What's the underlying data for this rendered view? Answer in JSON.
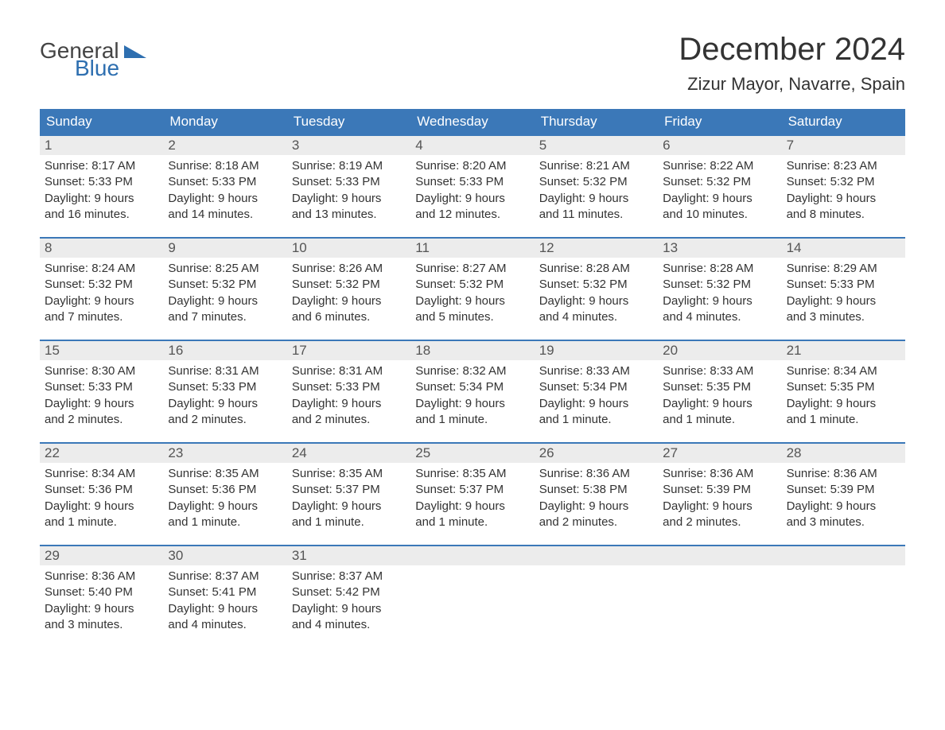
{
  "branding": {
    "name_general": "General",
    "name_blue": "Blue",
    "logo_primary_color": "#2e6fb0",
    "logo_text_color": "#444444"
  },
  "header": {
    "month_title": "December 2024",
    "location": "Zizur Mayor, Navarre, Spain"
  },
  "style": {
    "header_bg": "#3b78b8",
    "header_text": "#ffffff",
    "week_border": "#3b78b8",
    "daynum_bg": "#ececec",
    "body_text": "#333333",
    "page_bg": "#ffffff",
    "font_family": "Arial, Helvetica, sans-serif",
    "title_fontsize_pt": 30,
    "location_fontsize_pt": 17,
    "dayheader_fontsize_pt": 13,
    "cell_fontsize_pt": 11
  },
  "calendar": {
    "type": "table",
    "columns": [
      "Sunday",
      "Monday",
      "Tuesday",
      "Wednesday",
      "Thursday",
      "Friday",
      "Saturday"
    ],
    "weeks": [
      [
        {
          "day": "1",
          "sunrise": "Sunrise: 8:17 AM",
          "sunset": "Sunset: 5:33 PM",
          "daylight1": "Daylight: 9 hours",
          "daylight2": "and 16 minutes."
        },
        {
          "day": "2",
          "sunrise": "Sunrise: 8:18 AM",
          "sunset": "Sunset: 5:33 PM",
          "daylight1": "Daylight: 9 hours",
          "daylight2": "and 14 minutes."
        },
        {
          "day": "3",
          "sunrise": "Sunrise: 8:19 AM",
          "sunset": "Sunset: 5:33 PM",
          "daylight1": "Daylight: 9 hours",
          "daylight2": "and 13 minutes."
        },
        {
          "day": "4",
          "sunrise": "Sunrise: 8:20 AM",
          "sunset": "Sunset: 5:33 PM",
          "daylight1": "Daylight: 9 hours",
          "daylight2": "and 12 minutes."
        },
        {
          "day": "5",
          "sunrise": "Sunrise: 8:21 AM",
          "sunset": "Sunset: 5:32 PM",
          "daylight1": "Daylight: 9 hours",
          "daylight2": "and 11 minutes."
        },
        {
          "day": "6",
          "sunrise": "Sunrise: 8:22 AM",
          "sunset": "Sunset: 5:32 PM",
          "daylight1": "Daylight: 9 hours",
          "daylight2": "and 10 minutes."
        },
        {
          "day": "7",
          "sunrise": "Sunrise: 8:23 AM",
          "sunset": "Sunset: 5:32 PM",
          "daylight1": "Daylight: 9 hours",
          "daylight2": "and 8 minutes."
        }
      ],
      [
        {
          "day": "8",
          "sunrise": "Sunrise: 8:24 AM",
          "sunset": "Sunset: 5:32 PM",
          "daylight1": "Daylight: 9 hours",
          "daylight2": "and 7 minutes."
        },
        {
          "day": "9",
          "sunrise": "Sunrise: 8:25 AM",
          "sunset": "Sunset: 5:32 PM",
          "daylight1": "Daylight: 9 hours",
          "daylight2": "and 7 minutes."
        },
        {
          "day": "10",
          "sunrise": "Sunrise: 8:26 AM",
          "sunset": "Sunset: 5:32 PM",
          "daylight1": "Daylight: 9 hours",
          "daylight2": "and 6 minutes."
        },
        {
          "day": "11",
          "sunrise": "Sunrise: 8:27 AM",
          "sunset": "Sunset: 5:32 PM",
          "daylight1": "Daylight: 9 hours",
          "daylight2": "and 5 minutes."
        },
        {
          "day": "12",
          "sunrise": "Sunrise: 8:28 AM",
          "sunset": "Sunset: 5:32 PM",
          "daylight1": "Daylight: 9 hours",
          "daylight2": "and 4 minutes."
        },
        {
          "day": "13",
          "sunrise": "Sunrise: 8:28 AM",
          "sunset": "Sunset: 5:32 PM",
          "daylight1": "Daylight: 9 hours",
          "daylight2": "and 4 minutes."
        },
        {
          "day": "14",
          "sunrise": "Sunrise: 8:29 AM",
          "sunset": "Sunset: 5:33 PM",
          "daylight1": "Daylight: 9 hours",
          "daylight2": "and 3 minutes."
        }
      ],
      [
        {
          "day": "15",
          "sunrise": "Sunrise: 8:30 AM",
          "sunset": "Sunset: 5:33 PM",
          "daylight1": "Daylight: 9 hours",
          "daylight2": "and 2 minutes."
        },
        {
          "day": "16",
          "sunrise": "Sunrise: 8:31 AM",
          "sunset": "Sunset: 5:33 PM",
          "daylight1": "Daylight: 9 hours",
          "daylight2": "and 2 minutes."
        },
        {
          "day": "17",
          "sunrise": "Sunrise: 8:31 AM",
          "sunset": "Sunset: 5:33 PM",
          "daylight1": "Daylight: 9 hours",
          "daylight2": "and 2 minutes."
        },
        {
          "day": "18",
          "sunrise": "Sunrise: 8:32 AM",
          "sunset": "Sunset: 5:34 PM",
          "daylight1": "Daylight: 9 hours",
          "daylight2": "and 1 minute."
        },
        {
          "day": "19",
          "sunrise": "Sunrise: 8:33 AM",
          "sunset": "Sunset: 5:34 PM",
          "daylight1": "Daylight: 9 hours",
          "daylight2": "and 1 minute."
        },
        {
          "day": "20",
          "sunrise": "Sunrise: 8:33 AM",
          "sunset": "Sunset: 5:35 PM",
          "daylight1": "Daylight: 9 hours",
          "daylight2": "and 1 minute."
        },
        {
          "day": "21",
          "sunrise": "Sunrise: 8:34 AM",
          "sunset": "Sunset: 5:35 PM",
          "daylight1": "Daylight: 9 hours",
          "daylight2": "and 1 minute."
        }
      ],
      [
        {
          "day": "22",
          "sunrise": "Sunrise: 8:34 AM",
          "sunset": "Sunset: 5:36 PM",
          "daylight1": "Daylight: 9 hours",
          "daylight2": "and 1 minute."
        },
        {
          "day": "23",
          "sunrise": "Sunrise: 8:35 AM",
          "sunset": "Sunset: 5:36 PM",
          "daylight1": "Daylight: 9 hours",
          "daylight2": "and 1 minute."
        },
        {
          "day": "24",
          "sunrise": "Sunrise: 8:35 AM",
          "sunset": "Sunset: 5:37 PM",
          "daylight1": "Daylight: 9 hours",
          "daylight2": "and 1 minute."
        },
        {
          "day": "25",
          "sunrise": "Sunrise: 8:35 AM",
          "sunset": "Sunset: 5:37 PM",
          "daylight1": "Daylight: 9 hours",
          "daylight2": "and 1 minute."
        },
        {
          "day": "26",
          "sunrise": "Sunrise: 8:36 AM",
          "sunset": "Sunset: 5:38 PM",
          "daylight1": "Daylight: 9 hours",
          "daylight2": "and 2 minutes."
        },
        {
          "day": "27",
          "sunrise": "Sunrise: 8:36 AM",
          "sunset": "Sunset: 5:39 PM",
          "daylight1": "Daylight: 9 hours",
          "daylight2": "and 2 minutes."
        },
        {
          "day": "28",
          "sunrise": "Sunrise: 8:36 AM",
          "sunset": "Sunset: 5:39 PM",
          "daylight1": "Daylight: 9 hours",
          "daylight2": "and 3 minutes."
        }
      ],
      [
        {
          "day": "29",
          "sunrise": "Sunrise: 8:36 AM",
          "sunset": "Sunset: 5:40 PM",
          "daylight1": "Daylight: 9 hours",
          "daylight2": "and 3 minutes."
        },
        {
          "day": "30",
          "sunrise": "Sunrise: 8:37 AM",
          "sunset": "Sunset: 5:41 PM",
          "daylight1": "Daylight: 9 hours",
          "daylight2": "and 4 minutes."
        },
        {
          "day": "31",
          "sunrise": "Sunrise: 8:37 AM",
          "sunset": "Sunset: 5:42 PM",
          "daylight1": "Daylight: 9 hours",
          "daylight2": "and 4 minutes."
        },
        null,
        null,
        null,
        null
      ]
    ]
  }
}
